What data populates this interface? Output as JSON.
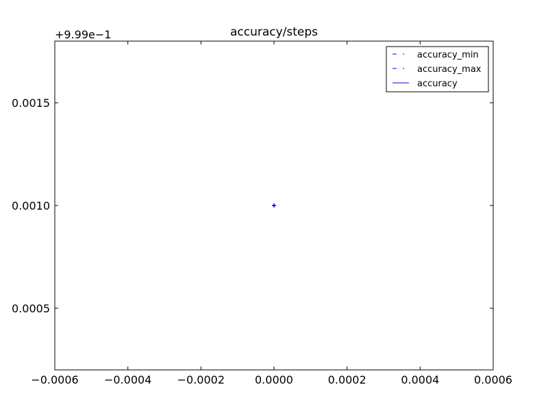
{
  "chart_data": {
    "type": "line",
    "title": "accuracy/steps",
    "xlabel": "",
    "ylabel": "",
    "xlim": [
      -0.0006,
      0.0006
    ],
    "ylim": [
      0.0002,
      0.0018
    ],
    "y_offset_label": "+9.99e−1",
    "x_ticks": [
      -0.0006,
      -0.0004,
      -0.0002,
      0.0,
      0.0002,
      0.0004,
      0.0006
    ],
    "x_tick_labels": [
      "−0.0006",
      "−0.0004",
      "−0.0002",
      "0.0000",
      "0.0002",
      "0.0004",
      "0.0006"
    ],
    "y_ticks": [
      0.0005,
      0.001,
      0.0015
    ],
    "y_tick_labels": [
      "0.0005",
      "0.0010",
      "0.0015"
    ],
    "grid": false,
    "legend_position": "top-right",
    "series": [
      {
        "name": "accuracy_min",
        "style": "dashdot",
        "color": "#0000ff",
        "x": [
          0.0
        ],
        "y": [
          0.001
        ]
      },
      {
        "name": "accuracy_max",
        "style": "dashdot",
        "color": "#0000ff",
        "x": [
          0.0
        ],
        "y": [
          0.001
        ]
      },
      {
        "name": "accuracy",
        "style": "solid",
        "color": "#0000ff",
        "x": [
          0.0
        ],
        "y": [
          0.001
        ]
      }
    ]
  }
}
